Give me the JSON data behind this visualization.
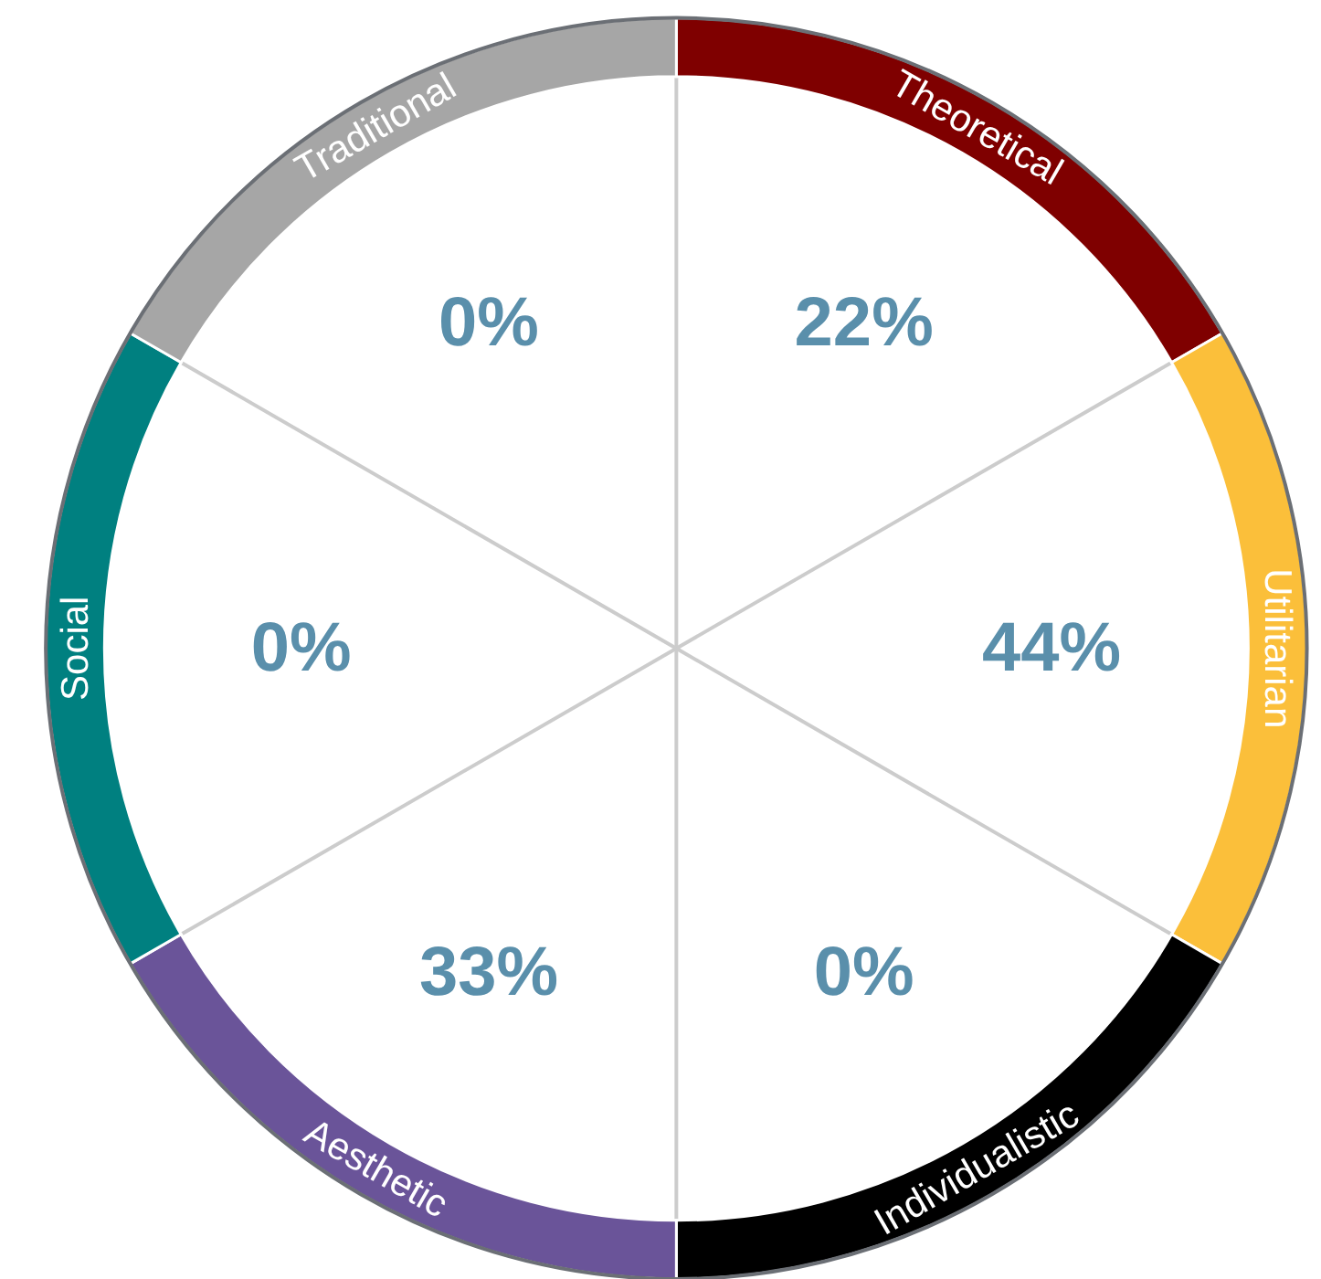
{
  "chart_data": {
    "type": "other",
    "categories": [
      "Theoretical",
      "Utilitarian",
      "Individualistic",
      "Aesthetic",
      "Social",
      "Traditional"
    ],
    "values": [
      22,
      44,
      0,
      33,
      0,
      0
    ],
    "value_labels": [
      "22%",
      "44%",
      "0%",
      "33%",
      "0%",
      "0%"
    ],
    "colors": [
      "#7f0000",
      "#fbbf3a",
      "#000000",
      "#6a5499",
      "#008080",
      "#a6a6a6"
    ]
  }
}
